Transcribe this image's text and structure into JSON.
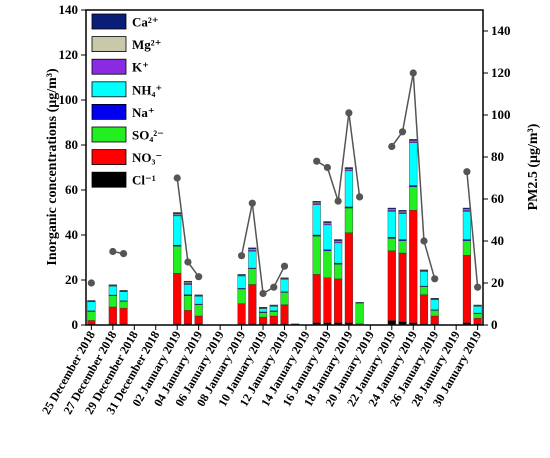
{
  "chart_data": {
    "type": "bar",
    "stacked": true,
    "secondary_series_type": "line+scatter",
    "x_tick_labels": [
      "25 December 2018",
      "27 December 2018",
      "29 December 2018",
      "31 December 2018",
      "02 January 2019",
      "04 January 2019",
      "06 January 2019",
      "08 January 2019",
      "10 January 2019",
      "12 January 2019",
      "14 January 2019",
      "16 January 2019",
      "18 January 2019",
      "20 January 2019",
      "22 January 2019",
      "24 January 2019",
      "26 January 2019",
      "28 January 2019",
      "30 January 2019"
    ],
    "days": [
      "2018-12-25",
      "2018-12-26",
      "2018-12-27",
      "2018-12-28",
      "2018-12-29",
      "2018-12-30",
      "2018-12-31",
      "2019-01-01",
      "2019-01-02",
      "2019-01-03",
      "2019-01-04",
      "2019-01-05",
      "2019-01-06",
      "2019-01-07",
      "2019-01-08",
      "2019-01-09",
      "2019-01-10",
      "2019-01-11",
      "2019-01-12",
      "2019-01-13",
      "2019-01-14",
      "2019-01-15",
      "2019-01-16",
      "2019-01-17",
      "2019-01-18",
      "2019-01-19",
      "2019-01-20",
      "2019-01-21",
      "2019-01-22",
      "2019-01-23",
      "2019-01-24",
      "2019-01-25",
      "2019-01-26",
      "2019-01-27",
      "2019-01-28",
      "2019-01-29",
      "2019-01-30"
    ],
    "ylabel_left": "Inorganic concentrations (μg/m³)",
    "ylim_left": [
      0,
      140
    ],
    "yticks_left": [
      0,
      20,
      40,
      60,
      80,
      100,
      120,
      140
    ],
    "ylabel_right": "PM2.5 (μg/m³)",
    "ylim_right": [
      0,
      150
    ],
    "yticks_right": [
      0,
      20,
      40,
      60,
      80,
      100,
      120,
      140
    ],
    "legend_position": "top-left",
    "series": [
      {
        "name": "Cl⁻¹",
        "color": "#000000",
        "values": [
          0.5,
          null,
          0.5,
          0.5,
          null,
          null,
          null,
          null,
          0.5,
          0.5,
          0.5,
          null,
          null,
          null,
          0.5,
          0.5,
          0.5,
          0.5,
          0.5,
          0.5,
          null,
          1,
          1,
          1,
          1,
          0.3,
          null,
          null,
          2,
          1.5,
          1,
          0.5,
          0.5,
          null,
          null,
          1,
          0.5
        ]
      },
      {
        "name": "NO₃⁻",
        "color": "#ff0000",
        "values": [
          1.5,
          null,
          7.5,
          7,
          null,
          null,
          null,
          null,
          22.5,
          6,
          3.5,
          null,
          null,
          null,
          9,
          17.5,
          3,
          3.5,
          8.5,
          null,
          null,
          21.5,
          20,
          19.5,
          40,
          0.2,
          null,
          null,
          31,
          30.5,
          50,
          13,
          3.5,
          null,
          null,
          30,
          2.5
        ]
      },
      {
        "name": "SO₄²⁻",
        "color": "#22ee22",
        "values": [
          4,
          null,
          5,
          3,
          null,
          null,
          null,
          null,
          12,
          6.5,
          5,
          null,
          null,
          null,
          6.5,
          7,
          2,
          2,
          5.5,
          null,
          null,
          17,
          12,
          6.5,
          11,
          9,
          null,
          null,
          5.5,
          5.5,
          10.5,
          3.5,
          2.5,
          null,
          null,
          6.5,
          2
        ]
      },
      {
        "name": "Na⁺",
        "color": "#0000ee",
        "values": [
          0.3,
          null,
          0.3,
          0.3,
          null,
          null,
          null,
          null,
          0.5,
          0.5,
          0.3,
          null,
          null,
          null,
          0.3,
          0.3,
          0.3,
          0.3,
          0.3,
          null,
          null,
          0.5,
          0.5,
          0.5,
          0.5,
          0,
          null,
          null,
          0.5,
          0.5,
          0.5,
          0.3,
          0.3,
          null,
          null,
          0.5,
          0.3
        ]
      },
      {
        "name": "NH₄⁺",
        "color": "#00ffff",
        "values": [
          4,
          null,
          4,
          4,
          null,
          null,
          null,
          null,
          13,
          4.5,
          3.5,
          null,
          null,
          null,
          5.5,
          7.5,
          1.5,
          2,
          5.5,
          null,
          null,
          13.5,
          11,
          9,
          16,
          0.5,
          null,
          null,
          11.5,
          11.5,
          19,
          6.5,
          4.5,
          null,
          null,
          12.5,
          3
        ]
      },
      {
        "name": "K⁺",
        "color": "#8a2be2",
        "values": [
          0.2,
          null,
          0.2,
          0.2,
          null,
          null,
          null,
          null,
          0.5,
          0.5,
          0.2,
          null,
          null,
          null,
          0.3,
          0.5,
          0.2,
          0.2,
          0.3,
          null,
          null,
          0.5,
          0.5,
          0.5,
          0.5,
          0,
          null,
          null,
          0.5,
          0.5,
          0.5,
          0.3,
          0.2,
          null,
          null,
          0.5,
          0.2
        ]
      },
      {
        "name": "Mg²⁺",
        "color": "#c8c8aa",
        "values": [
          0.2,
          null,
          0.2,
          0.2,
          null,
          null,
          null,
          null,
          0.5,
          0.5,
          0.2,
          null,
          null,
          null,
          0.2,
          0.5,
          0.2,
          0.2,
          0.2,
          null,
          null,
          0.5,
          0.5,
          0.5,
          0.5,
          0,
          null,
          null,
          0.5,
          0.5,
          0.5,
          0.2,
          0.2,
          null,
          null,
          0.5,
          0.2
        ]
      },
      {
        "name": "Ca²⁺",
        "color": "#0a1e78",
        "values": [
          0.2,
          null,
          0.2,
          0.2,
          null,
          null,
          null,
          null,
          0.5,
          0.5,
          0.2,
          null,
          null,
          null,
          0.2,
          0.5,
          0.2,
          0.2,
          0.2,
          null,
          null,
          0.5,
          0.5,
          0.5,
          0.5,
          0.1,
          null,
          null,
          0.5,
          0.5,
          0.5,
          0.2,
          0.2,
          null,
          null,
          0.5,
          0.2
        ]
      }
    ],
    "pm25": {
      "color": "#555555",
      "values": [
        20,
        null,
        35,
        34,
        null,
        null,
        null,
        null,
        70,
        30,
        23,
        null,
        null,
        null,
        33,
        58,
        15,
        18,
        28,
        null,
        null,
        78,
        75,
        59,
        101,
        61,
        null,
        null,
        85,
        92,
        120,
        40,
        22,
        null,
        null,
        73,
        18
      ]
    }
  }
}
